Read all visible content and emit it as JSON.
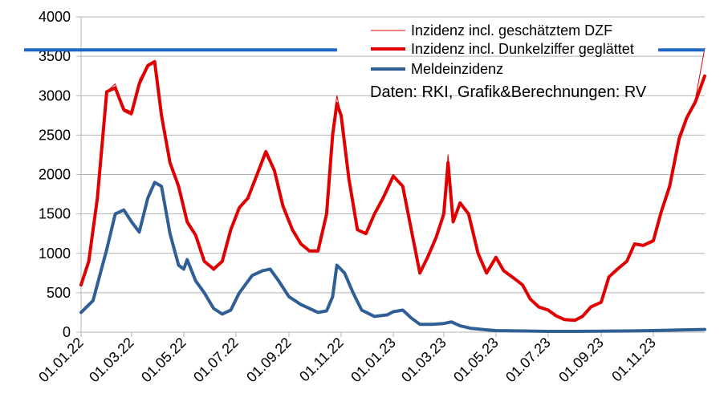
{
  "chart_data": {
    "type": "line",
    "x_start": "2022-01-01",
    "x_end": "2023-12-31",
    "ylim": [
      0,
      4000
    ],
    "y_ticks": [
      "0",
      "500",
      "1000",
      "1500",
      "2000",
      "2500",
      "3000",
      "3500",
      "4000"
    ],
    "x_ticks": [
      {
        "date": "2022-01-01",
        "label": "01.01.22"
      },
      {
        "date": "2022-03-01",
        "label": "01.03.22"
      },
      {
        "date": "2022-05-01",
        "label": "01.05.22"
      },
      {
        "date": "2022-07-01",
        "label": "01.07.22"
      },
      {
        "date": "2022-09-01",
        "label": "01.09.22"
      },
      {
        "date": "2022-11-01",
        "label": "01.11.22"
      },
      {
        "date": "2023-01-01",
        "label": "01.01.23"
      },
      {
        "date": "2023-03-01",
        "label": "01.03.23"
      },
      {
        "date": "2023-05-01",
        "label": "01.05.23"
      },
      {
        "date": "2023-07-01",
        "label": "01.07.23"
      },
      {
        "date": "2023-09-01",
        "label": "01.09.23"
      },
      {
        "date": "2023-11-01",
        "label": "01.11.23"
      }
    ],
    "grid": "horizontal",
    "legend_position": "top-right",
    "reference_line": {
      "y": 3580,
      "color": "#1f66c8"
    },
    "series": [
      {
        "name": "Inzidenz incl. geschätztem DZF",
        "color": "#e00000",
        "style": "thin",
        "x": [
          "2022-01-01",
          "2022-01-10",
          "2022-01-20",
          "2022-01-31",
          "2022-02-10",
          "2022-02-20",
          "2022-03-01",
          "2022-03-10",
          "2022-03-20",
          "2022-03-28",
          "2022-04-05",
          "2022-04-15",
          "2022-04-25",
          "2022-05-05",
          "2022-05-15",
          "2022-05-25",
          "2022-06-05",
          "2022-06-15",
          "2022-06-25",
          "2022-07-05",
          "2022-07-15",
          "2022-07-25",
          "2022-08-05",
          "2022-08-15",
          "2022-08-25",
          "2022-09-05",
          "2022-09-15",
          "2022-09-25",
          "2022-10-05",
          "2022-10-15",
          "2022-10-22",
          "2022-10-27",
          "2022-11-01",
          "2022-11-10",
          "2022-11-20",
          "2022-11-30",
          "2022-12-10",
          "2022-12-20",
          "2023-01-01",
          "2023-01-12",
          "2023-01-22",
          "2023-02-01",
          "2023-02-10",
          "2023-02-20",
          "2023-03-01",
          "2023-03-06",
          "2023-03-12",
          "2023-03-20",
          "2023-03-30",
          "2023-04-10",
          "2023-04-20",
          "2023-05-01",
          "2023-05-10",
          "2023-05-20",
          "2023-06-01",
          "2023-06-10",
          "2023-06-20",
          "2023-07-01",
          "2023-07-10",
          "2023-07-20",
          "2023-08-01",
          "2023-08-10",
          "2023-08-20",
          "2023-09-01",
          "2023-09-10",
          "2023-09-20",
          "2023-10-01",
          "2023-10-10",
          "2023-10-20",
          "2023-11-01",
          "2023-11-10",
          "2023-11-20",
          "2023-12-01",
          "2023-12-10",
          "2023-12-20",
          "2023-12-31"
        ],
        "values": [
          600,
          900,
          1700,
          3050,
          3150,
          2800,
          2750,
          3200,
          3400,
          3450,
          2800,
          2150,
          1800,
          1400,
          1250,
          900,
          780,
          900,
          1300,
          1580,
          1700,
          1980,
          2300,
          2050,
          1600,
          1300,
          1120,
          1030,
          1030,
          1500,
          2600,
          3000,
          2750,
          1950,
          1300,
          1250,
          1500,
          1700,
          2000,
          1850,
          1300,
          750,
          950,
          1200,
          1500,
          2250,
          1400,
          1650,
          1500,
          1000,
          750,
          950,
          800,
          700,
          600,
          420,
          320,
          280,
          210,
          160,
          150,
          200,
          320,
          380,
          700,
          800,
          900,
          1130,
          1100,
          1170,
          1550,
          1900,
          2500,
          2750,
          2950,
          3600
        ]
      },
      {
        "name": "Inzidenz incl. Dunkelziffer geglättet",
        "color": "#e00000",
        "style": "thick",
        "x": [
          "2022-01-01",
          "2022-01-10",
          "2022-01-20",
          "2022-01-31",
          "2022-02-10",
          "2022-02-20",
          "2022-03-01",
          "2022-03-10",
          "2022-03-20",
          "2022-03-28",
          "2022-04-05",
          "2022-04-15",
          "2022-04-25",
          "2022-05-05",
          "2022-05-15",
          "2022-05-25",
          "2022-06-05",
          "2022-06-15",
          "2022-06-25",
          "2022-07-05",
          "2022-07-15",
          "2022-07-25",
          "2022-08-05",
          "2022-08-15",
          "2022-08-25",
          "2022-09-05",
          "2022-09-15",
          "2022-09-25",
          "2022-10-05",
          "2022-10-15",
          "2022-10-22",
          "2022-10-27",
          "2022-11-01",
          "2022-11-10",
          "2022-11-20",
          "2022-11-30",
          "2022-12-10",
          "2022-12-20",
          "2023-01-01",
          "2023-01-12",
          "2023-01-22",
          "2023-02-01",
          "2023-02-10",
          "2023-02-20",
          "2023-03-01",
          "2023-03-06",
          "2023-03-12",
          "2023-03-20",
          "2023-03-30",
          "2023-04-10",
          "2023-04-20",
          "2023-05-01",
          "2023-05-10",
          "2023-05-20",
          "2023-06-01",
          "2023-06-10",
          "2023-06-20",
          "2023-07-01",
          "2023-07-10",
          "2023-07-20",
          "2023-08-01",
          "2023-08-10",
          "2023-08-20",
          "2023-09-01",
          "2023-09-10",
          "2023-09-20",
          "2023-10-01",
          "2023-10-10",
          "2023-10-20",
          "2023-11-01",
          "2023-11-10",
          "2023-11-20",
          "2023-12-01",
          "2023-12-10",
          "2023-12-20",
          "2023-12-31"
        ],
        "values": [
          600,
          900,
          1700,
          3050,
          3100,
          2820,
          2780,
          3150,
          3380,
          3430,
          2750,
          2150,
          1850,
          1400,
          1230,
          900,
          800,
          900,
          1300,
          1580,
          1700,
          1980,
          2290,
          2050,
          1600,
          1300,
          1120,
          1030,
          1030,
          1500,
          2500,
          2900,
          2750,
          1950,
          1300,
          1250,
          1500,
          1700,
          1980,
          1850,
          1300,
          750,
          950,
          1200,
          1500,
          2150,
          1400,
          1640,
          1500,
          1000,
          750,
          950,
          780,
          700,
          600,
          420,
          320,
          280,
          210,
          160,
          150,
          200,
          320,
          380,
          700,
          800,
          900,
          1120,
          1100,
          1160,
          1520,
          1850,
          2450,
          2720,
          2920,
          3250
        ]
      },
      {
        "name": "Meldeinzidenz",
        "color": "#2f5f95",
        "style": "thick",
        "x": [
          "2022-01-01",
          "2022-01-15",
          "2022-01-31",
          "2022-02-10",
          "2022-02-20",
          "2022-03-01",
          "2022-03-10",
          "2022-03-20",
          "2022-03-28",
          "2022-04-05",
          "2022-04-15",
          "2022-04-25",
          "2022-05-01",
          "2022-05-05",
          "2022-05-15",
          "2022-05-25",
          "2022-06-05",
          "2022-06-15",
          "2022-06-25",
          "2022-07-05",
          "2022-07-20",
          "2022-08-01",
          "2022-08-10",
          "2022-08-20",
          "2022-09-01",
          "2022-09-15",
          "2022-09-25",
          "2022-10-05",
          "2022-10-15",
          "2022-10-22",
          "2022-10-27",
          "2022-11-05",
          "2022-11-15",
          "2022-11-25",
          "2022-12-10",
          "2022-12-25",
          "2023-01-01",
          "2023-01-12",
          "2023-01-22",
          "2023-02-01",
          "2023-02-15",
          "2023-03-01",
          "2023-03-10",
          "2023-03-20",
          "2023-04-01",
          "2023-04-20",
          "2023-05-01",
          "2023-06-01",
          "2023-07-01",
          "2023-08-01",
          "2023-09-01",
          "2023-10-01",
          "2023-11-01",
          "2023-12-01",
          "2023-12-31"
        ],
        "values": [
          250,
          400,
          1050,
          1500,
          1550,
          1400,
          1270,
          1700,
          1900,
          1850,
          1250,
          850,
          800,
          920,
          650,
          500,
          300,
          230,
          280,
          500,
          720,
          780,
          800,
          650,
          450,
          350,
          300,
          250,
          270,
          450,
          850,
          750,
          500,
          280,
          200,
          220,
          260,
          280,
          180,
          100,
          100,
          110,
          130,
          80,
          50,
          30,
          20,
          15,
          10,
          10,
          12,
          15,
          20,
          28,
          35
        ]
      }
    ],
    "legend": [
      {
        "label": "Inzidenz incl. geschätztem DZF"
      },
      {
        "label": "Inzidenz incl. Dunkelziffer geglättet"
      },
      {
        "label": "Meldeinzidenz"
      }
    ],
    "annotation": "Daten: RKI, Grafik&Berechnungen: RV"
  }
}
